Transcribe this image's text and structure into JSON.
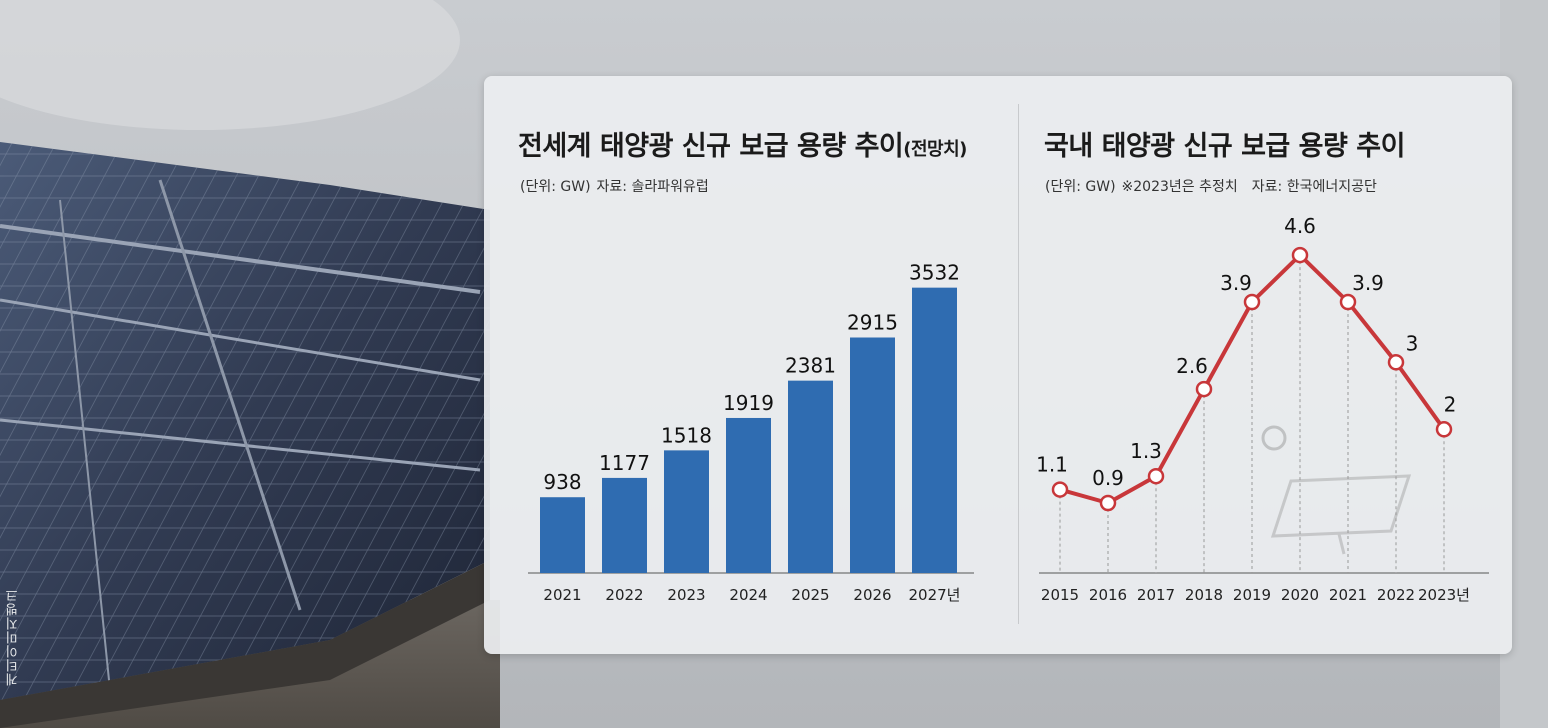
{
  "photo_credit": "게티이미지뱅크",
  "colors": {
    "bar": "#2f6cb1",
    "bar_highlight": "#2f6cb1",
    "highlight_label": "#2a6fb0",
    "line": "#c8373a",
    "last_label": "#c8373a"
  },
  "chart_data": [
    {
      "type": "bar",
      "title": "전세계 태양광 신규 보급 용량 추이",
      "title_suffix": "(전망치)",
      "unit_note": "(단위: GW)",
      "source": "자료: 솔라파워유럽",
      "categories": [
        "2021",
        "2022",
        "2023",
        "2024",
        "2025",
        "2026",
        "2027년"
      ],
      "values": [
        938,
        1177,
        1518,
        1919,
        2381,
        2915,
        3532
      ],
      "value_labels": [
        "938",
        "1177",
        "1518",
        "1919",
        "2381",
        "2915",
        "3532"
      ],
      "ylim": [
        0,
        3800
      ],
      "grid": false,
      "legend": "none"
    },
    {
      "type": "line",
      "title": "국내 태양광 신규 보급 용량 추이",
      "unit_note": "(단위: GW)",
      "note": "※2023년은 추정치",
      "source": "자료: 한국에너지공단",
      "categories": [
        "2015",
        "2016",
        "2017",
        "2018",
        "2019",
        "2020",
        "2021",
        "2022",
        "2023년"
      ],
      "values": [
        1.1,
        0.9,
        1.3,
        2.6,
        3.9,
        4.6,
        3.9,
        3,
        2
      ],
      "value_labels": [
        "1.1",
        "0.9",
        "1.3",
        "2.6",
        "3.9",
        "4.6",
        "3.9",
        "3",
        "2"
      ],
      "ylim": [
        0,
        5.2
      ],
      "grid": false,
      "legend": "none"
    }
  ]
}
